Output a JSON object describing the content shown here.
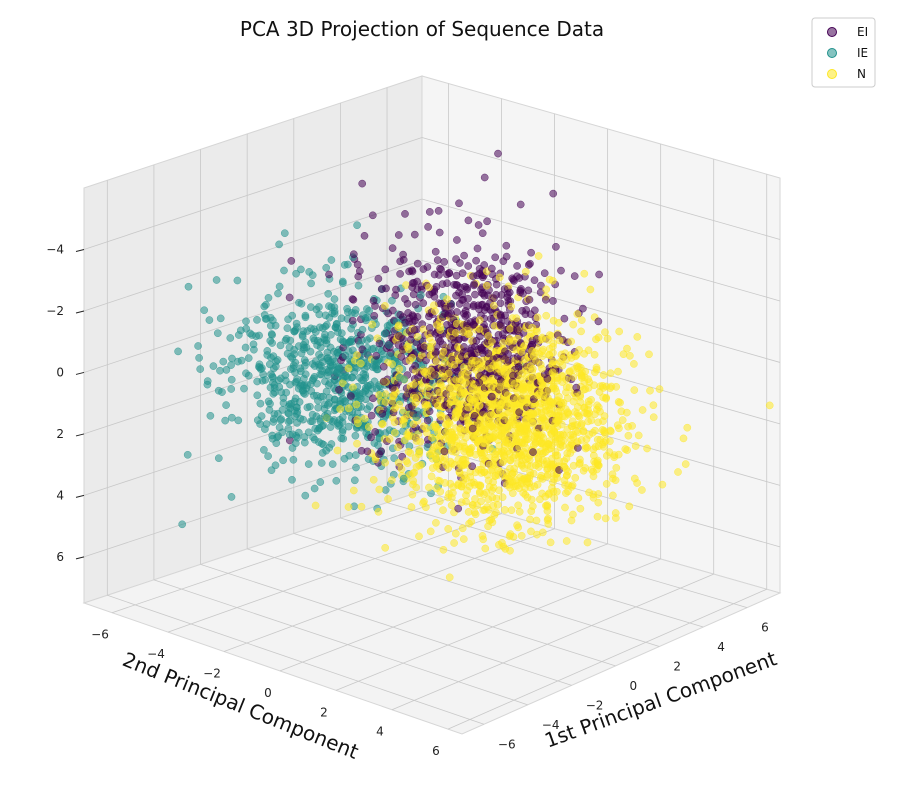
{
  "chart_data": {
    "type": "scatter",
    "projection": "3d",
    "title": "PCA 3D Projection of Sequence Data",
    "xlabel": "1st Principal Component",
    "ylabel": "2nd Principal Component",
    "zlabel": "",
    "z_inverted": true,
    "x_ticks": [
      "−6",
      "−4",
      "−2",
      "0",
      "2",
      "4",
      "6"
    ],
    "y_ticks": [
      "−6",
      "−4",
      "−2",
      "0",
      "2",
      "4",
      "6"
    ],
    "z_ticks": [
      "−4",
      "−2",
      "0",
      "2",
      "4",
      "6"
    ],
    "xlim": [
      -7,
      7.5
    ],
    "ylim": [
      -7,
      6.5
    ],
    "zlim": [
      -6,
      7.5
    ],
    "grid": true,
    "legend": {
      "position": "top-right"
    },
    "series": [
      {
        "name": "EI",
        "color": "#440154",
        "center": [
          0.8,
          0.3,
          -1.0
        ],
        "spread": [
          1.5,
          1.4,
          1.6
        ],
        "n_points": 760
      },
      {
        "name": "IE",
        "color": "#21918c",
        "center": [
          -3.0,
          -1.2,
          -0.6
        ],
        "spread": [
          1.4,
          1.6,
          1.4
        ],
        "n_points": 770
      },
      {
        "name": "N",
        "color": "#fde725",
        "center": [
          1.3,
          1.4,
          1.2
        ],
        "spread": [
          1.6,
          1.7,
          1.5
        ],
        "n_points": 1650
      }
    ]
  }
}
